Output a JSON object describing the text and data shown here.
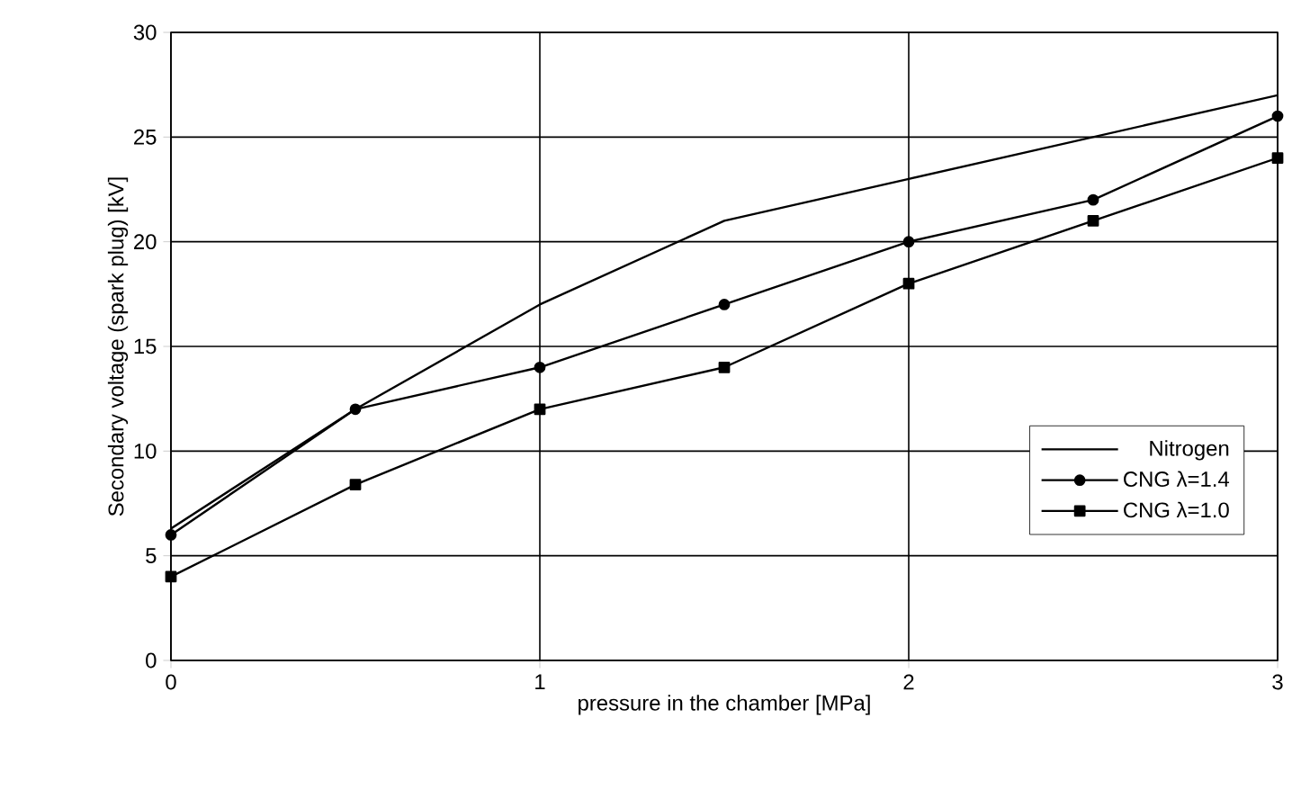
{
  "chart_data": {
    "type": "line",
    "xlabel": "pressure in the chamber [MPa]",
    "ylabel": "Secondary voltage (spark plug) [kV]",
    "x": [
      0,
      0.5,
      1,
      1.5,
      2,
      2.5,
      3
    ],
    "series": [
      {
        "name": "Nitrogen",
        "color": "#000000",
        "marker": "none",
        "values": [
          6.3,
          12,
          17,
          21,
          23,
          25,
          27
        ]
      },
      {
        "name": "CNG λ=1.4",
        "color": "#000000",
        "marker": "circle",
        "values": [
          6,
          12,
          14,
          17,
          20,
          22,
          26
        ]
      },
      {
        "name": "CNG λ=1.0",
        "color": "#000000",
        "marker": "square",
        "values": [
          4,
          8.4,
          12,
          14,
          18,
          21,
          24
        ]
      }
    ],
    "xlim": [
      0,
      3
    ],
    "ylim": [
      0,
      30
    ],
    "xticks": [
      0,
      1,
      2,
      3
    ],
    "yticks": [
      0,
      5,
      10,
      15,
      20,
      25,
      30
    ],
    "grid": true,
    "legend": "bottom right",
    "line_style": "solid"
  }
}
